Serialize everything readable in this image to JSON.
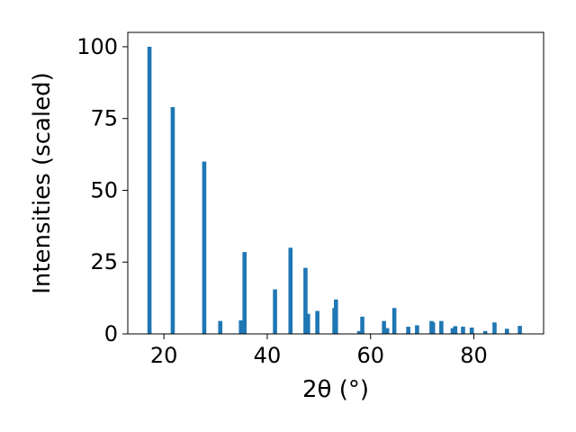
{
  "chart_data": {
    "type": "bar",
    "xlabel": "2θ (°)",
    "ylabel": "Intensities (scaled)",
    "xlim": [
      13,
      93.5
    ],
    "ylim": [
      0,
      105
    ],
    "xticks": [
      20,
      40,
      60,
      80
    ],
    "yticks": [
      0,
      25,
      50,
      75,
      100
    ],
    "bar_width": 0.8,
    "bar_color": "#1f77b4",
    "grid": false,
    "x": [
      17.2,
      21.7,
      27.8,
      30.9,
      34.9,
      35.6,
      41.5,
      44.5,
      47.4,
      47.9,
      49.7,
      53.0,
      53.3,
      57.8,
      58.4,
      62.6,
      63.2,
      64.6,
      67.3,
      69.0,
      71.8,
      72.1,
      73.7,
      75.9,
      76.4,
      77.9,
      79.6,
      82.2,
      84.0,
      86.4,
      88.9
    ],
    "values": [
      100,
      79,
      60,
      4.5,
      4.7,
      28.5,
      15.5,
      30,
      23,
      7,
      8,
      9,
      12,
      1,
      6,
      4.5,
      2,
      9,
      2.5,
      3,
      4.5,
      4,
      4.5,
      2,
      2.7,
      2.5,
      2.2,
      1,
      4,
      1.8,
      2.8
    ]
  }
}
